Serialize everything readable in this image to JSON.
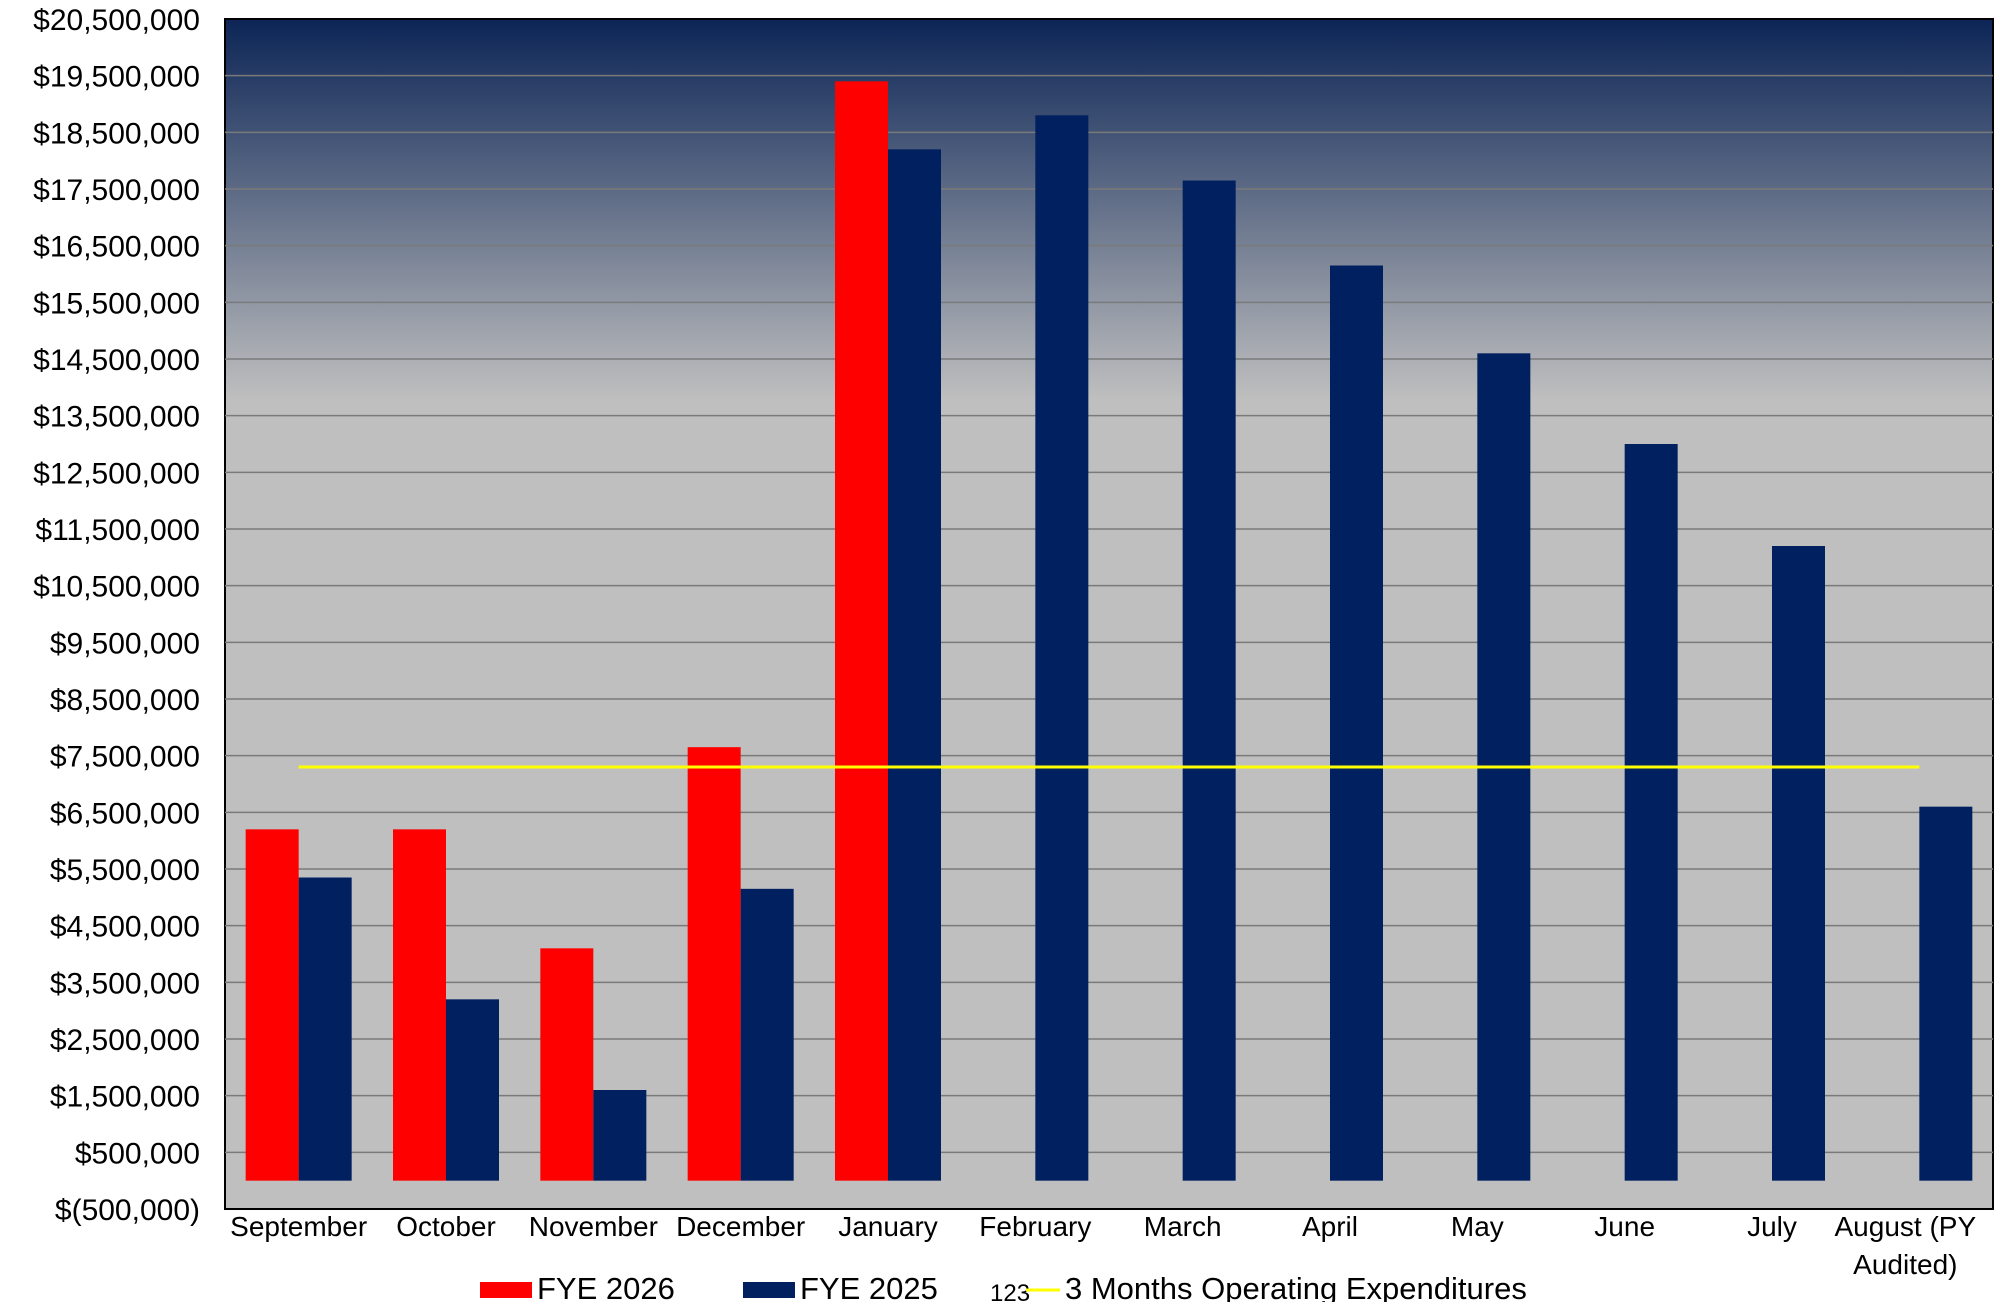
{
  "chart_data": {
    "type": "bar",
    "categories": [
      "September",
      "October",
      "November",
      "December",
      "January",
      "February",
      "March",
      "April",
      "May",
      "June",
      "July",
      "August (PY Audited)"
    ],
    "series": [
      {
        "name": "FYE 2026",
        "color": "#ff0000",
        "values": [
          6200000,
          6200000,
          4100000,
          7650000,
          19400000,
          null,
          null,
          null,
          null,
          null,
          null,
          null
        ]
      },
      {
        "name": "FYE 2025",
        "color": "#002060",
        "values": [
          5350000,
          3200000,
          1600000,
          5150000,
          18200000,
          18800000,
          17650000,
          16150000,
          14600000,
          13000000,
          11200000,
          6600000
        ]
      }
    ],
    "reference_line": {
      "name": "3 Months Operating  Expenditures",
      "value": 7300000,
      "color": "#ffff00",
      "legend_marker_text": "123"
    },
    "ylim": [
      -500000,
      20500000
    ],
    "ytick_values": [
      -500000,
      500000,
      1500000,
      2500000,
      3500000,
      4500000,
      5500000,
      6500000,
      7500000,
      8500000,
      9500000,
      10500000,
      11500000,
      12500000,
      13500000,
      14500000,
      15500000,
      16500000,
      17500000,
      18500000,
      19500000,
      20500000
    ],
    "ytick_labels": [
      "$(500,000)",
      "$500,000",
      "$1,500,000",
      "$2,500,000",
      "$3,500,000",
      "$4,500,000",
      "$5,500,000",
      "$6,500,000",
      "$7,500,000",
      "$8,500,000",
      "$9,500,000",
      "$10,500,000",
      "$11,500,000",
      "$12,500,000",
      "$13,500,000",
      "$14,500,000",
      "$15,500,000",
      "$16,500,000",
      "$17,500,000",
      "$18,500,000",
      "$19,500,000",
      "$20,500,000"
    ],
    "grid": true,
    "legend_position": "bottom",
    "background_gradient": [
      "#0c2556",
      "#bfbfbf"
    ],
    "title": "",
    "xlabel": "",
    "ylabel": ""
  }
}
